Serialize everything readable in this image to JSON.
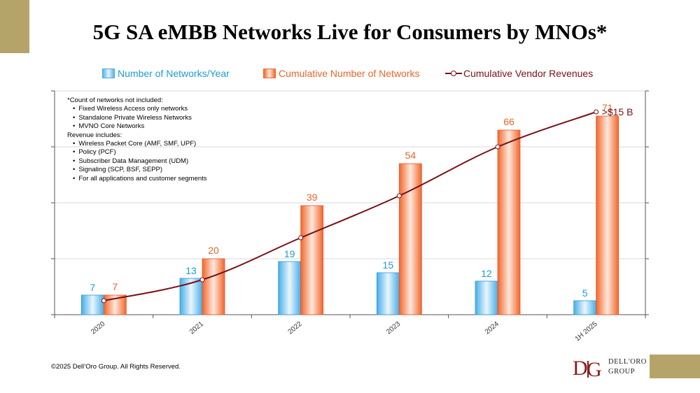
{
  "title": "5G SA eMBB Networks Live for Consumers by MNOs*",
  "legend": {
    "networks_per_year": "Number of Networks/Year",
    "cumulative_networks": "Cumulative Number of Networks",
    "vendor_revenues": "Cumulative Vendor Revenues"
  },
  "notes": {
    "heading": "*Count of networks not included:",
    "excluded": [
      "Fixed Wireless Access only networks",
      "Standalone Private Wireless Networks",
      "MVNO Core Networks"
    ],
    "revenue_heading": "Revenue includes:",
    "revenue_items": [
      "Wireless Packet Core (AMF, SMF, UPF)",
      "Policy (PCF)",
      "Subscriber Data Management (UDM)",
      "Signaling (SCP, BSF, SEPP)",
      "For all applications and customer segments"
    ]
  },
  "copyright": "©2025 Dell’Oro Group. All Rights Reserved.",
  "logo": {
    "line1": "DELL'ORO",
    "line2": "GROUP"
  },
  "colors": {
    "blue": "#1e9ad6",
    "orange": "#e8662a",
    "line": "#7a1018"
  },
  "chart_data": {
    "type": "bar",
    "categories": [
      "2020",
      "2021",
      "2022",
      "2023",
      "2024",
      "1H 2025"
    ],
    "series": [
      {
        "name": "Number of Networks/Year",
        "type": "bar",
        "values": [
          7,
          13,
          19,
          15,
          12,
          5
        ]
      },
      {
        "name": "Cumulative Number of Networks",
        "type": "bar",
        "values": [
          7,
          20,
          39,
          54,
          66,
          71
        ]
      },
      {
        "name": "Cumulative Vendor Revenues",
        "type": "line",
        "values": [
          1,
          2.5,
          5.5,
          8.5,
          12,
          14.5
        ],
        "last_label": ">$15 B"
      }
    ],
    "ylim": [
      0,
      80
    ],
    "line_ylim": [
      0,
      16
    ],
    "grid": true,
    "legend_position": "top"
  }
}
